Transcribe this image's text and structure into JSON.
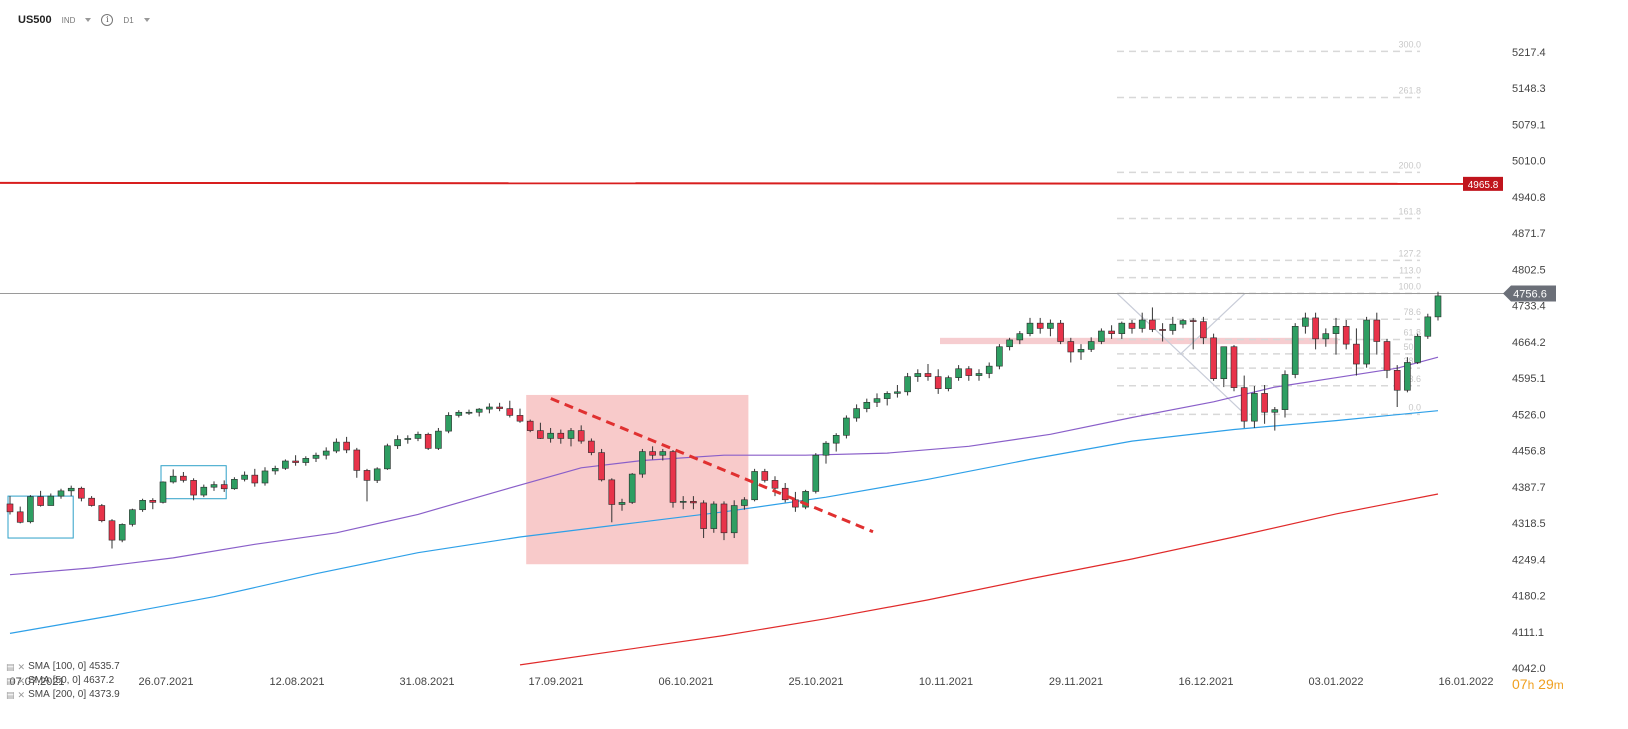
{
  "header": {
    "symbol": "US500",
    "market": "IND",
    "timeframe": "D1"
  },
  "timer": {
    "hours": "07",
    "h_unit": "h",
    "minutes": "29",
    "m_unit": "m"
  },
  "legend": [
    {
      "name": "SMA",
      "params": "[100, 0]",
      "value": "4535.7"
    },
    {
      "name": "SMA",
      "params": "[50, 0]",
      "value": "4637.2"
    },
    {
      "name": "SMA",
      "params": "[200, 0]",
      "value": "4373.9"
    }
  ],
  "colors": {
    "up": "#2e9e62",
    "down": "#e8334a",
    "sma100": "#2ea0e8",
    "sma50": "#8a5fc9",
    "sma200": "#e02a2a",
    "resistance": "#d81e1e",
    "fib": "#d8d8d8",
    "price_line": "#9a9a9a"
  },
  "chart_data": {
    "type": "candlestick",
    "ylim": [
      4042.0,
      5250.0
    ],
    "y_ticks": [
      "5217.4",
      "5148.3",
      "5079.1",
      "5010.0",
      "4940.8",
      "4871.7",
      "4802.5",
      "4733.4",
      "4664.2",
      "4595.1",
      "4526.0",
      "4456.8",
      "4387.7",
      "4318.5",
      "4249.4",
      "4180.2",
      "4111.1",
      "4042.0"
    ],
    "x_ticks": [
      "07.07.2021",
      "26.07.2021",
      "12.08.2021",
      "31.08.2021",
      "17.09.2021",
      "06.10.2021",
      "25.10.2021",
      "10.11.2021",
      "29.11.2021",
      "16.12.2021",
      "03.01.2022",
      "16.01.2022"
    ],
    "candles": [
      [
        4355,
        4370,
        4335,
        4340
      ],
      [
        4340,
        4350,
        4318,
        4320
      ],
      [
        4321,
        4372,
        4318,
        4369
      ],
      [
        4369,
        4380,
        4350,
        4352
      ],
      [
        4352,
        4375,
        4352,
        4370
      ],
      [
        4370,
        4384,
        4365,
        4380
      ],
      [
        4380,
        4390,
        4370,
        4385
      ],
      [
        4385,
        4388,
        4360,
        4366
      ],
      [
        4366,
        4370,
        4350,
        4352
      ],
      [
        4352,
        4355,
        4320,
        4323
      ],
      [
        4323,
        4326,
        4270,
        4286
      ],
      [
        4286,
        4318,
        4282,
        4316
      ],
      [
        4316,
        4346,
        4312,
        4344
      ],
      [
        4344,
        4365,
        4340,
        4362
      ],
      [
        4362,
        4366,
        4345,
        4358
      ],
      [
        4358,
        4398,
        4356,
        4397
      ],
      [
        4397,
        4421,
        4394,
        4408
      ],
      [
        4408,
        4416,
        4396,
        4400
      ],
      [
        4400,
        4404,
        4362,
        4372
      ],
      [
        4372,
        4392,
        4368,
        4387
      ],
      [
        4387,
        4398,
        4380,
        4392
      ],
      [
        4392,
        4400,
        4378,
        4384
      ],
      [
        4384,
        4406,
        4382,
        4402
      ],
      [
        4402,
        4417,
        4398,
        4410
      ],
      [
        4410,
        4422,
        4388,
        4395
      ],
      [
        4395,
        4425,
        4390,
        4418
      ],
      [
        4418,
        4428,
        4411,
        4423
      ],
      [
        4423,
        4440,
        4420,
        4437
      ],
      [
        4437,
        4448,
        4428,
        4434
      ],
      [
        4434,
        4446,
        4428,
        4442
      ],
      [
        4442,
        4453,
        4435,
        4448
      ],
      [
        4448,
        4463,
        4440,
        4456
      ],
      [
        4456,
        4480,
        4452,
        4473
      ],
      [
        4473,
        4483,
        4452,
        4458
      ],
      [
        4458,
        4462,
        4405,
        4419
      ],
      [
        4419,
        4422,
        4360,
        4400
      ],
      [
        4400,
        4425,
        4395,
        4422
      ],
      [
        4422,
        4470,
        4420,
        4466
      ],
      [
        4466,
        4486,
        4460,
        4478
      ],
      [
        4478,
        4486,
        4470,
        4480
      ],
      [
        4480,
        4493,
        4475,
        4488
      ],
      [
        4488,
        4491,
        4458,
        4461
      ],
      [
        4461,
        4500,
        4458,
        4494
      ],
      [
        4494,
        4530,
        4490,
        4524
      ],
      [
        4524,
        4534,
        4520,
        4530
      ],
      [
        4530,
        4535,
        4525,
        4530
      ],
      [
        4530,
        4538,
        4522,
        4536
      ],
      [
        4536,
        4547,
        4528,
        4540
      ],
      [
        4540,
        4548,
        4532,
        4537
      ],
      [
        4537,
        4552,
        4520,
        4524
      ],
      [
        4524,
        4537,
        4510,
        4513
      ],
      [
        4513,
        4516,
        4492,
        4495
      ],
      [
        4495,
        4510,
        4479,
        4480
      ],
      [
        4480,
        4500,
        4472,
        4490
      ],
      [
        4490,
        4497,
        4470,
        4480
      ],
      [
        4480,
        4500,
        4465,
        4495
      ],
      [
        4495,
        4505,
        4470,
        4475
      ],
      [
        4475,
        4480,
        4448,
        4453
      ],
      [
        4453,
        4460,
        4398,
        4401
      ],
      [
        4401,
        4404,
        4320,
        4354
      ],
      [
        4354,
        4365,
        4342,
        4358
      ],
      [
        4358,
        4414,
        4355,
        4412
      ],
      [
        4412,
        4460,
        4405,
        4455
      ],
      [
        4455,
        4465,
        4440,
        4448
      ],
      [
        4448,
        4460,
        4438,
        4455
      ],
      [
        4455,
        4458,
        4348,
        4358
      ],
      [
        4358,
        4370,
        4345,
        4360
      ],
      [
        4360,
        4370,
        4345,
        4357
      ],
      [
        4357,
        4362,
        4290,
        4308
      ],
      [
        4308,
        4360,
        4300,
        4355
      ],
      [
        4355,
        4360,
        4286,
        4300
      ],
      [
        4300,
        4362,
        4290,
        4352
      ],
      [
        4352,
        4368,
        4344,
        4363
      ],
      [
        4363,
        4422,
        4360,
        4417
      ],
      [
        4417,
        4422,
        4396,
        4400
      ],
      [
        4400,
        4408,
        4370,
        4385
      ],
      [
        4385,
        4395,
        4358,
        4363
      ],
      [
        4363,
        4378,
        4340,
        4349
      ],
      [
        4349,
        4382,
        4345,
        4379
      ],
      [
        4379,
        4452,
        4375,
        4448
      ],
      [
        4448,
        4475,
        4432,
        4471
      ],
      [
        4471,
        4490,
        4455,
        4486
      ],
      [
        4486,
        4524,
        4480,
        4519
      ],
      [
        4519,
        4545,
        4512,
        4537
      ],
      [
        4537,
        4556,
        4530,
        4549
      ],
      [
        4549,
        4566,
        4540,
        4556
      ],
      [
        4556,
        4570,
        4543,
        4566
      ],
      [
        4566,
        4582,
        4558,
        4569
      ],
      [
        4569,
        4605,
        4562,
        4598
      ],
      [
        4598,
        4612,
        4588,
        4604
      ],
      [
        4604,
        4622,
        4590,
        4598
      ],
      [
        4598,
        4612,
        4565,
        4575
      ],
      [
        4575,
        4600,
        4570,
        4596
      ],
      [
        4596,
        4620,
        4590,
        4613
      ],
      [
        4613,
        4618,
        4590,
        4600
      ],
      [
        4600,
        4612,
        4590,
        4604
      ],
      [
        4604,
        4625,
        4595,
        4618
      ],
      [
        4618,
        4660,
        4612,
        4655
      ],
      [
        4655,
        4672,
        4648,
        4668
      ],
      [
        4668,
        4685,
        4660,
        4680
      ],
      [
        4680,
        4710,
        4675,
        4700
      ],
      [
        4700,
        4710,
        4680,
        4690
      ],
      [
        4690,
        4707,
        4675,
        4700
      ],
      [
        4700,
        4706,
        4660,
        4665
      ],
      [
        4665,
        4672,
        4625,
        4645
      ],
      [
        4645,
        4660,
        4630,
        4650
      ],
      [
        4650,
        4673,
        4645,
        4665
      ],
      [
        4665,
        4690,
        4660,
        4685
      ],
      [
        4685,
        4696,
        4670,
        4680
      ],
      [
        4680,
        4703,
        4670,
        4700
      ],
      [
        4700,
        4706,
        4680,
        4690
      ],
      [
        4690,
        4720,
        4682,
        4706
      ],
      [
        4706,
        4730,
        4683,
        4688
      ],
      [
        4688,
        4700,
        4665,
        4686
      ],
      [
        4686,
        4712,
        4678,
        4698
      ],
      [
        4698,
        4708,
        4690,
        4705
      ],
      [
        4705,
        4710,
        4650,
        4703
      ],
      [
        4703,
        4712,
        4660,
        4672
      ],
      [
        4672,
        4680,
        4590,
        4594
      ],
      [
        4594,
        4650,
        4578,
        4655
      ],
      [
        4655,
        4658,
        4570,
        4577
      ],
      [
        4577,
        4600,
        4500,
        4513
      ],
      [
        4513,
        4580,
        4500,
        4566
      ],
      [
        4566,
        4582,
        4508,
        4530
      ],
      [
        4530,
        4540,
        4495,
        4535
      ],
      [
        4535,
        4610,
        4520,
        4602
      ],
      [
        4602,
        4700,
        4595,
        4694
      ],
      [
        4694,
        4720,
        4680,
        4710
      ],
      [
        4710,
        4720,
        4650,
        4670
      ],
      [
        4670,
        4690,
        4655,
        4680
      ],
      [
        4680,
        4710,
        4640,
        4694
      ],
      [
        4694,
        4706,
        4650,
        4660
      ],
      [
        4660,
        4690,
        4600,
        4622
      ],
      [
        4622,
        4712,
        4615,
        4706
      ],
      [
        4706,
        4720,
        4640,
        4665
      ],
      [
        4665,
        4670,
        4595,
        4610
      ],
      [
        4610,
        4620,
        4540,
        4572
      ],
      [
        4572,
        4635,
        4568,
        4625
      ],
      [
        4625,
        4680,
        4622,
        4675
      ],
      [
        4675,
        4718,
        4670,
        4712
      ],
      [
        4712,
        4760,
        4705,
        4752
      ]
    ],
    "series": [
      {
        "name": "SMA [50, 0]",
        "values": [
          [
            0,
            4220
          ],
          [
            8,
            4233
          ],
          [
            16,
            4252
          ],
          [
            24,
            4278
          ],
          [
            32,
            4300
          ],
          [
            40,
            4335
          ],
          [
            48,
            4380
          ],
          [
            56,
            4424
          ],
          [
            62,
            4438
          ],
          [
            70,
            4448
          ],
          [
            78,
            4448
          ],
          [
            86,
            4452
          ],
          [
            94,
            4465
          ],
          [
            102,
            4488
          ],
          [
            110,
            4520
          ],
          [
            118,
            4550
          ],
          [
            124,
            4578
          ],
          [
            130,
            4596
          ],
          [
            136,
            4614
          ],
          [
            140,
            4635
          ]
        ]
      },
      {
        "name": "SMA [100, 0]",
        "values": [
          [
            0,
            4108
          ],
          [
            10,
            4142
          ],
          [
            20,
            4178
          ],
          [
            30,
            4222
          ],
          [
            40,
            4262
          ],
          [
            50,
            4292
          ],
          [
            60,
            4316
          ],
          [
            70,
            4340
          ],
          [
            80,
            4368
          ],
          [
            90,
            4402
          ],
          [
            100,
            4440
          ],
          [
            110,
            4475
          ],
          [
            120,
            4497
          ],
          [
            130,
            4514
          ],
          [
            140,
            4533
          ]
        ]
      },
      {
        "name": "SMA [200, 0]",
        "values": [
          [
            50,
            4048
          ],
          [
            60,
            4076
          ],
          [
            70,
            4104
          ],
          [
            80,
            4136
          ],
          [
            90,
            4172
          ],
          [
            100,
            4212
          ],
          [
            110,
            4250
          ],
          [
            120,
            4292
          ],
          [
            130,
            4336
          ],
          [
            140,
            4374
          ]
        ]
      }
    ],
    "resistance": {
      "level": 4965.8,
      "label": "4965.8"
    },
    "last_price": {
      "level": 4756.6,
      "label": "4756.6"
    },
    "fibonacci": [
      {
        "label": "0.0",
        "value": 4526.0
      },
      {
        "label": "23.6",
        "value": 4580.5
      },
      {
        "label": "38.2",
        "value": 4614.3
      },
      {
        "label": "50.0",
        "value": 4641.5
      },
      {
        "label": "61.8",
        "value": 4668.8
      },
      {
        "label": "78.6",
        "value": 4707.5
      },
      {
        "label": "100.0",
        "value": 4756.9
      },
      {
        "label": "113.0",
        "value": 4786.9
      },
      {
        "label": "127.2",
        "value": 4819.7
      },
      {
        "label": "161.8",
        "value": 4899.6
      },
      {
        "label": "200.0",
        "value": 4987.8
      },
      {
        "label": "261.8",
        "value": 5130.5
      },
      {
        "label": "300.0",
        "value": 5218.7
      }
    ],
    "support_zone": [
      4660,
      4672
    ],
    "consolidation_box": {
      "x0": 51,
      "x1": 72,
      "y0": 4240,
      "y1": 4563
    },
    "small_boxes": [
      {
        "x0": 0,
        "x1": 6,
        "y0": 4290,
        "y1": 4370
      },
      {
        "x0": 15,
        "x1": 21,
        "y0": 4365,
        "y1": 4428
      }
    ],
    "trendline": {
      "x0": 54,
      "y0": 4560,
      "x1": 109,
      "y1": 4302
    }
  }
}
